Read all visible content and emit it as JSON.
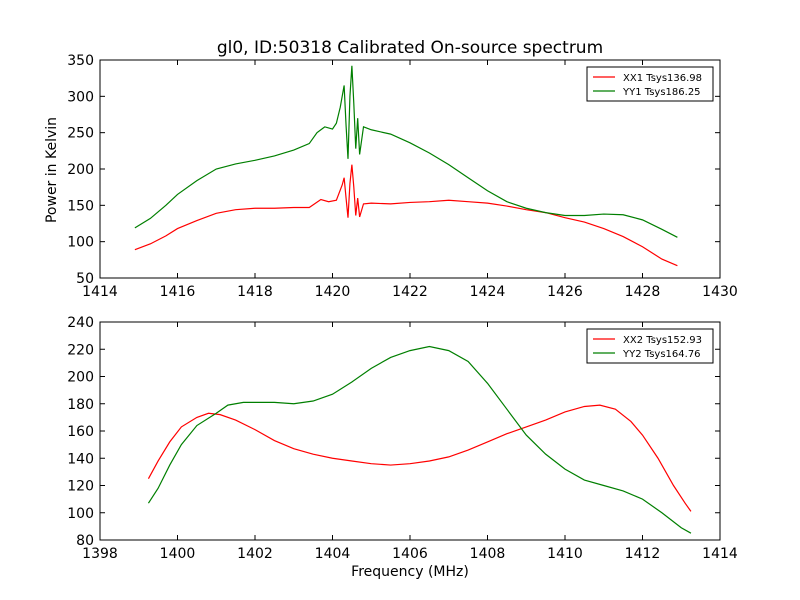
{
  "chart_data": [
    {
      "type": "line",
      "title": "gl0, ID:50318 Calibrated On-source spectrum",
      "xlabel": "",
      "ylabel": "Power in Kelvin",
      "xlim": [
        1414,
        1430
      ],
      "ylim": [
        50,
        350
      ],
      "xticks": [
        1414,
        1416,
        1418,
        1420,
        1422,
        1424,
        1426,
        1428,
        1430
      ],
      "yticks": [
        50,
        100,
        150,
        200,
        250,
        300,
        350
      ],
      "legend": "top-right",
      "series": [
        {
          "name": "XX1 Tsys136.98",
          "color": "#ff0000",
          "points": [
            [
              1414.9,
              89
            ],
            [
              1415.3,
              97
            ],
            [
              1415.7,
              108
            ],
            [
              1416.0,
              118
            ],
            [
              1416.5,
              129
            ],
            [
              1417.0,
              139
            ],
            [
              1417.5,
              144
            ],
            [
              1418.0,
              146
            ],
            [
              1418.5,
              146
            ],
            [
              1419.0,
              147
            ],
            [
              1419.4,
              147
            ],
            [
              1419.7,
              158
            ],
            [
              1419.9,
              155
            ],
            [
              1420.1,
              157
            ],
            [
              1420.25,
              178
            ],
            [
              1420.3,
              188
            ],
            [
              1420.35,
              160
            ],
            [
              1420.4,
              133
            ],
            [
              1420.45,
              180
            ],
            [
              1420.5,
              206
            ],
            [
              1420.55,
              175
            ],
            [
              1420.6,
              136
            ],
            [
              1420.65,
              160
            ],
            [
              1420.7,
              134
            ],
            [
              1420.8,
              152
            ],
            [
              1421.0,
              153
            ],
            [
              1421.5,
              152
            ],
            [
              1422.0,
              154
            ],
            [
              1422.5,
              155
            ],
            [
              1423.0,
              157
            ],
            [
              1423.5,
              155
            ],
            [
              1424.0,
              153
            ],
            [
              1424.5,
              149
            ],
            [
              1425.0,
              144
            ],
            [
              1425.5,
              140
            ],
            [
              1426.0,
              133
            ],
            [
              1426.5,
              127
            ],
            [
              1427.0,
              118
            ],
            [
              1427.5,
              107
            ],
            [
              1428.0,
              93
            ],
            [
              1428.5,
              76
            ],
            [
              1428.9,
              67
            ]
          ]
        },
        {
          "name": "YY1 Tsys186.25",
          "color": "#007f00",
          "points": [
            [
              1414.9,
              119
            ],
            [
              1415.3,
              132
            ],
            [
              1415.7,
              150
            ],
            [
              1416.0,
              165
            ],
            [
              1416.5,
              184
            ],
            [
              1417.0,
              200
            ],
            [
              1417.5,
              207
            ],
            [
              1418.0,
              212
            ],
            [
              1418.5,
              218
            ],
            [
              1419.0,
              226
            ],
            [
              1419.4,
              235
            ],
            [
              1419.6,
              250
            ],
            [
              1419.8,
              258
            ],
            [
              1420.0,
              255
            ],
            [
              1420.1,
              263
            ],
            [
              1420.2,
              285
            ],
            [
              1420.3,
              315
            ],
            [
              1420.35,
              260
            ],
            [
              1420.4,
              214
            ],
            [
              1420.45,
              300
            ],
            [
              1420.5,
              342
            ],
            [
              1420.55,
              290
            ],
            [
              1420.6,
              228
            ],
            [
              1420.65,
              270
            ],
            [
              1420.7,
              220
            ],
            [
              1420.8,
              258
            ],
            [
              1421.0,
              254
            ],
            [
              1421.5,
              248
            ],
            [
              1422.0,
              236
            ],
            [
              1422.5,
              222
            ],
            [
              1423.0,
              206
            ],
            [
              1423.5,
              188
            ],
            [
              1424.0,
              170
            ],
            [
              1424.5,
              155
            ],
            [
              1425.0,
              146
            ],
            [
              1425.5,
              140
            ],
            [
              1426.0,
              136
            ],
            [
              1426.5,
              136
            ],
            [
              1427.0,
              138
            ],
            [
              1427.5,
              137
            ],
            [
              1428.0,
              130
            ],
            [
              1428.5,
              117
            ],
            [
              1428.9,
              106
            ]
          ]
        }
      ]
    },
    {
      "type": "line",
      "title": "",
      "xlabel": "Frequency (MHz)",
      "ylabel": "",
      "xlim": [
        1398,
        1414
      ],
      "ylim": [
        80,
        240
      ],
      "xticks": [
        1398,
        1400,
        1402,
        1404,
        1406,
        1408,
        1410,
        1412,
        1414
      ],
      "yticks": [
        80,
        100,
        120,
        140,
        160,
        180,
        200,
        220,
        240
      ],
      "legend": "top-right",
      "series": [
        {
          "name": "XX2 Tsys152.93",
          "color": "#ff0000",
          "points": [
            [
              1399.25,
              125
            ],
            [
              1399.5,
              138
            ],
            [
              1399.8,
              152
            ],
            [
              1400.1,
              163
            ],
            [
              1400.5,
              170
            ],
            [
              1400.8,
              173
            ],
            [
              1401.1,
              172
            ],
            [
              1401.5,
              168
            ],
            [
              1402.0,
              161
            ],
            [
              1402.5,
              153
            ],
            [
              1403.0,
              147
            ],
            [
              1403.5,
              143
            ],
            [
              1404.0,
              140
            ],
            [
              1404.5,
              138
            ],
            [
              1405.0,
              136
            ],
            [
              1405.5,
              135
            ],
            [
              1406.0,
              136
            ],
            [
              1406.5,
              138
            ],
            [
              1407.0,
              141
            ],
            [
              1407.5,
              146
            ],
            [
              1408.0,
              152
            ],
            [
              1408.5,
              158
            ],
            [
              1409.0,
              163
            ],
            [
              1409.5,
              168
            ],
            [
              1410.0,
              174
            ],
            [
              1410.5,
              178
            ],
            [
              1410.9,
              179
            ],
            [
              1411.3,
              176
            ],
            [
              1411.7,
              167
            ],
            [
              1412.0,
              157
            ],
            [
              1412.4,
              140
            ],
            [
              1412.8,
              120
            ],
            [
              1413.1,
              107
            ],
            [
              1413.25,
              101
            ]
          ]
        },
        {
          "name": "YY2 Tsys164.76",
          "color": "#007f00",
          "points": [
            [
              1399.25,
              107
            ],
            [
              1399.5,
              118
            ],
            [
              1399.8,
              135
            ],
            [
              1400.1,
              150
            ],
            [
              1400.5,
              164
            ],
            [
              1401.0,
              173
            ],
            [
              1401.3,
              179
            ],
            [
              1401.7,
              181
            ],
            [
              1402.0,
              181
            ],
            [
              1402.5,
              181
            ],
            [
              1403.0,
              180
            ],
            [
              1403.5,
              182
            ],
            [
              1404.0,
              187
            ],
            [
              1404.5,
              196
            ],
            [
              1405.0,
              206
            ],
            [
              1405.5,
              214
            ],
            [
              1406.0,
              219
            ],
            [
              1406.5,
              222
            ],
            [
              1407.0,
              219
            ],
            [
              1407.5,
              211
            ],
            [
              1408.0,
              195
            ],
            [
              1408.5,
              176
            ],
            [
              1409.0,
              157
            ],
            [
              1409.5,
              143
            ],
            [
              1410.0,
              132
            ],
            [
              1410.5,
              124
            ],
            [
              1411.0,
              120
            ],
            [
              1411.5,
              116
            ],
            [
              1412.0,
              110
            ],
            [
              1412.5,
              100
            ],
            [
              1413.0,
              89
            ],
            [
              1413.25,
              85
            ]
          ]
        }
      ]
    }
  ]
}
